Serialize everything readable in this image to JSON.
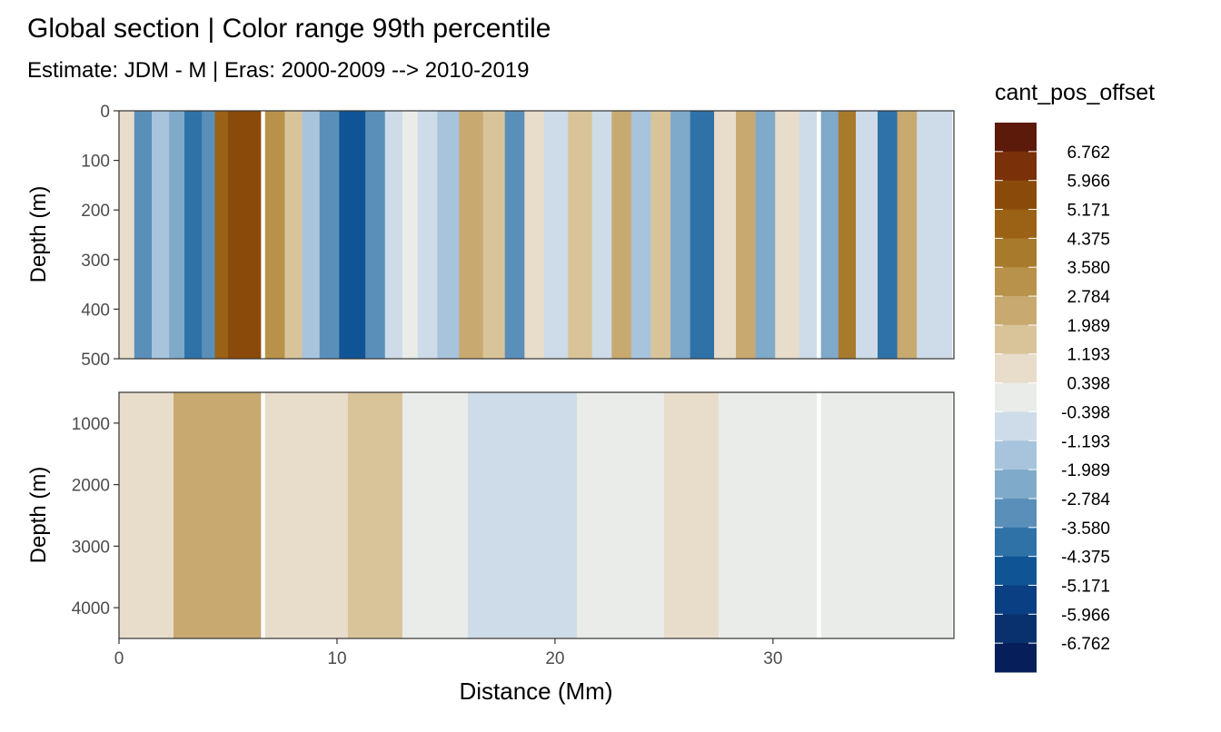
{
  "chart_data": {
    "type": "heatmap",
    "title": "Global section | Color range 99th percentile",
    "subtitle": "Estimate: JDM - M | Eras: 2000-2009 --> 2010-2019",
    "xlabel": "Distance (Mm)",
    "x_ticks": [
      0,
      10,
      20,
      30
    ],
    "xlim": [
      0,
      38.3
    ],
    "legend": {
      "title": "cant_pos_offset",
      "placement": "right",
      "labels": [
        "6.762",
        "5.966",
        "5.171",
        "4.375",
        "3.580",
        "2.784",
        "1.989",
        "1.193",
        "0.398",
        "-0.398",
        "-1.193",
        "-1.989",
        "-2.784",
        "-3.580",
        "-4.375",
        "-5.171",
        "-5.966",
        "-6.762"
      ],
      "colors": [
        "#5c1a0a",
        "#7a3009",
        "#8a4a0a",
        "#9b6114",
        "#a87a2c",
        "#b8924a",
        "#c8aa70",
        "#d9c49a",
        "#e8dccb",
        "#eaecea",
        "#cddce8",
        "#a7c4dc",
        "#80aaca",
        "#5a8fb9",
        "#2f72a7",
        "#0f5596",
        "#0b3f83",
        "#08316d",
        "#061f5a"
      ]
    },
    "panels": [
      {
        "name": "surface",
        "ylabel": "Depth (m)",
        "ylim": [
          0,
          500
        ],
        "y_ticks": [
          0,
          100,
          200,
          300,
          400,
          500
        ],
        "gap_lines_x": [
          6.6,
          32.1
        ],
        "bands": [
          {
            "x0": 0.0,
            "x1": 0.7,
            "level": 8
          },
          {
            "x0": 0.7,
            "x1": 1.5,
            "level": 13
          },
          {
            "x0": 1.5,
            "x1": 2.3,
            "level": 11
          },
          {
            "x0": 2.3,
            "x1": 3.0,
            "level": 12
          },
          {
            "x0": 3.0,
            "x1": 3.8,
            "level": 14
          },
          {
            "x0": 3.8,
            "x1": 4.4,
            "level": 13
          },
          {
            "x0": 4.4,
            "x1": 5.0,
            "level": 3
          },
          {
            "x0": 5.0,
            "x1": 6.5,
            "level": 2
          },
          {
            "x0": 6.7,
            "x1": 7.6,
            "level": 5
          },
          {
            "x0": 7.6,
            "x1": 8.4,
            "level": 7
          },
          {
            "x0": 8.4,
            "x1": 9.2,
            "level": 11
          },
          {
            "x0": 9.2,
            "x1": 10.1,
            "level": 13
          },
          {
            "x0": 10.1,
            "x1": 11.3,
            "level": 15
          },
          {
            "x0": 11.3,
            "x1": 12.2,
            "level": 13
          },
          {
            "x0": 12.2,
            "x1": 13.0,
            "level": 10
          },
          {
            "x0": 13.0,
            "x1": 13.7,
            "level": 9
          },
          {
            "x0": 13.7,
            "x1": 14.6,
            "level": 10
          },
          {
            "x0": 14.6,
            "x1": 15.6,
            "level": 11
          },
          {
            "x0": 15.6,
            "x1": 16.7,
            "level": 6
          },
          {
            "x0": 16.7,
            "x1": 17.7,
            "level": 7
          },
          {
            "x0": 17.7,
            "x1": 18.6,
            "level": 13
          },
          {
            "x0": 18.6,
            "x1": 19.5,
            "level": 8
          },
          {
            "x0": 19.5,
            "x1": 20.6,
            "level": 10
          },
          {
            "x0": 20.6,
            "x1": 21.7,
            "level": 7
          },
          {
            "x0": 21.7,
            "x1": 22.6,
            "level": 10
          },
          {
            "x0": 22.6,
            "x1": 23.5,
            "level": 6
          },
          {
            "x0": 23.5,
            "x1": 24.4,
            "level": 11
          },
          {
            "x0": 24.4,
            "x1": 25.3,
            "level": 7
          },
          {
            "x0": 25.3,
            "x1": 26.2,
            "level": 12
          },
          {
            "x0": 26.2,
            "x1": 27.3,
            "level": 14
          },
          {
            "x0": 27.3,
            "x1": 28.3,
            "level": 8
          },
          {
            "x0": 28.3,
            "x1": 29.2,
            "level": 6
          },
          {
            "x0": 29.2,
            "x1": 30.1,
            "level": 12
          },
          {
            "x0": 30.1,
            "x1": 31.2,
            "level": 8
          },
          {
            "x0": 31.2,
            "x1": 32.0,
            "level": 10
          },
          {
            "x0": 32.2,
            "x1": 33.0,
            "level": 12
          },
          {
            "x0": 33.0,
            "x1": 33.8,
            "level": 4
          },
          {
            "x0": 33.8,
            "x1": 34.8,
            "level": 10
          },
          {
            "x0": 34.8,
            "x1": 35.7,
            "level": 14
          },
          {
            "x0": 35.7,
            "x1": 36.6,
            "level": 6
          },
          {
            "x0": 36.6,
            "x1": 38.2,
            "level": 10
          }
        ]
      },
      {
        "name": "deep",
        "ylabel": "Depth (m)",
        "ylim": [
          500,
          4500
        ],
        "y_ticks": [
          1000,
          2000,
          3000,
          4000
        ],
        "gap_lines_x": [
          6.6,
          32.1
        ],
        "bands": [
          {
            "x0": 0.0,
            "x1": 2.5,
            "level": 8
          },
          {
            "x0": 2.5,
            "x1": 6.5,
            "level": 6
          },
          {
            "x0": 6.7,
            "x1": 10.5,
            "level": 8
          },
          {
            "x0": 10.5,
            "x1": 13.0,
            "level": 7
          },
          {
            "x0": 13.0,
            "x1": 16.0,
            "level": 9
          },
          {
            "x0": 16.0,
            "x1": 19.0,
            "level": 10
          },
          {
            "x0": 19.0,
            "x1": 21.0,
            "level": 10
          },
          {
            "x0": 21.0,
            "x1": 25.0,
            "level": 9
          },
          {
            "x0": 25.0,
            "x1": 27.5,
            "level": 8
          },
          {
            "x0": 27.5,
            "x1": 32.0,
            "level": 9
          },
          {
            "x0": 32.2,
            "x1": 38.2,
            "level": 9
          }
        ]
      }
    ]
  }
}
